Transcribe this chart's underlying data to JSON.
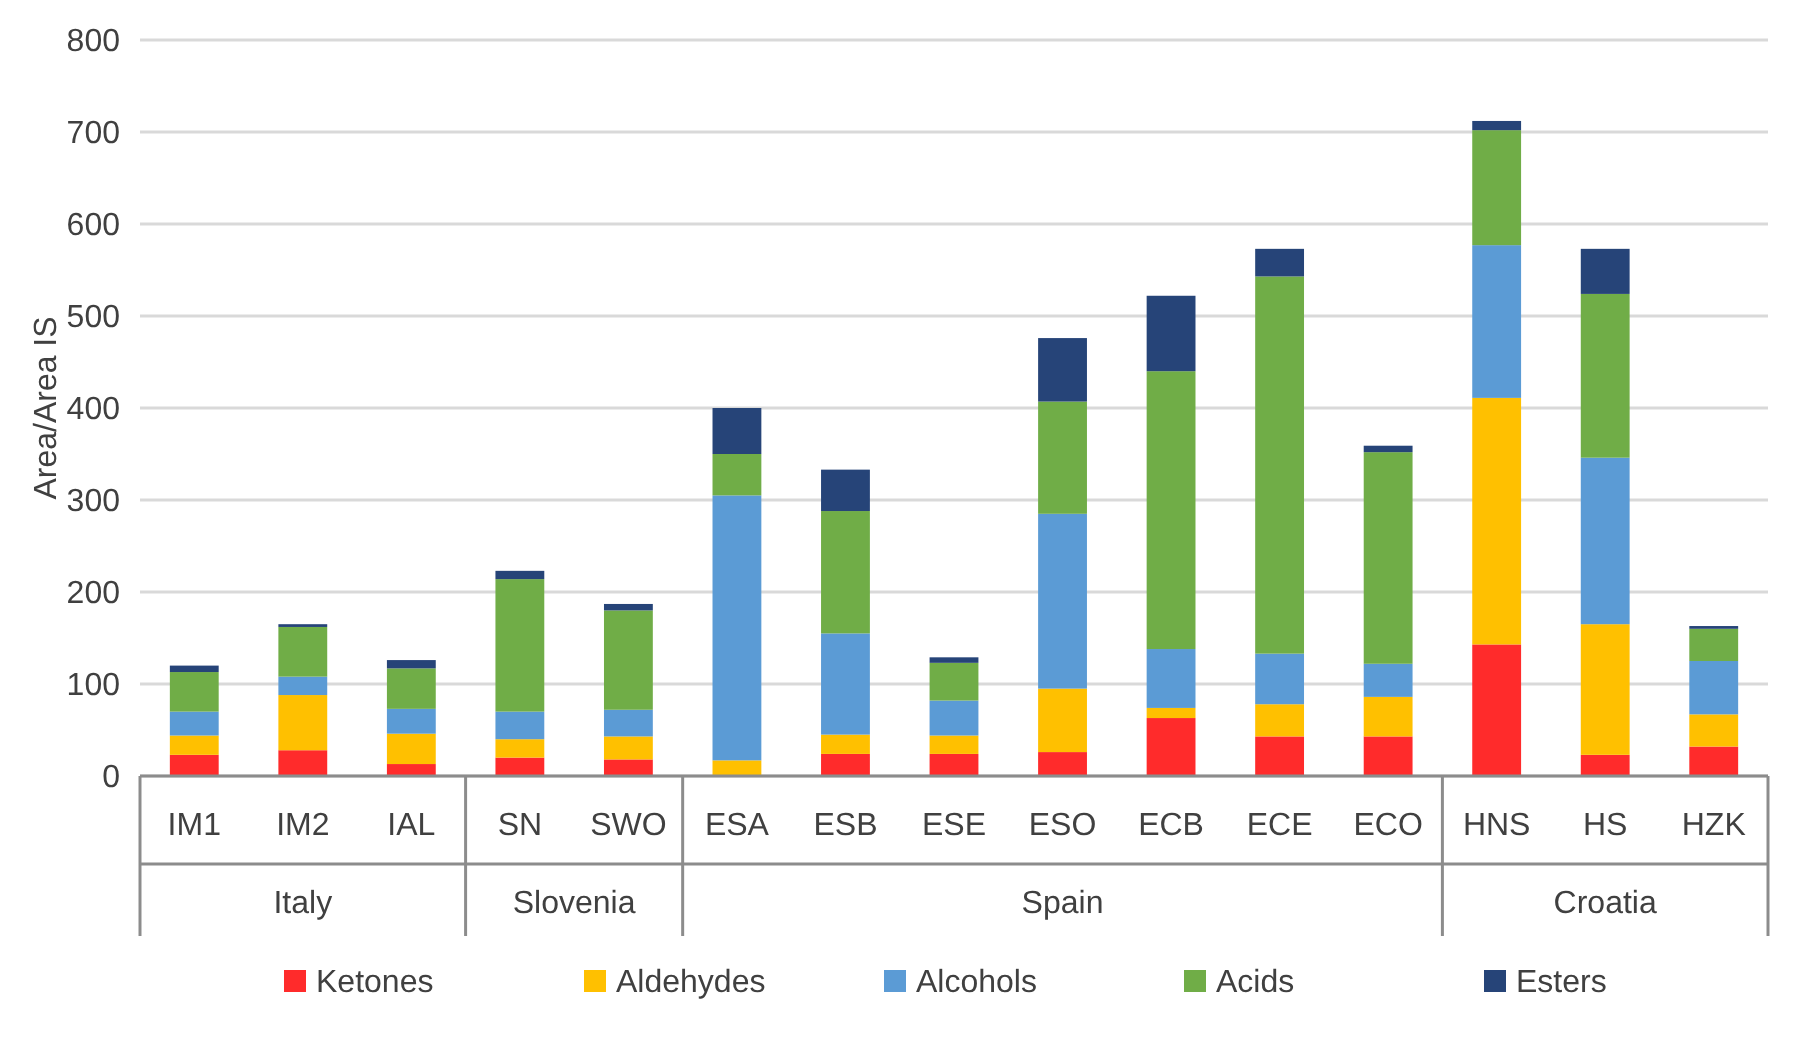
{
  "chart_data": {
    "type": "bar",
    "stacked": true,
    "ylabel": "Area/Area IS",
    "categories": [
      "IM1",
      "IM2",
      "IAL",
      "SN",
      "SWO",
      "ESA",
      "ESB",
      "ESE",
      "ESO",
      "ECB",
      "ECE",
      "ECO",
      "HNS",
      "HS",
      "HZK"
    ],
    "annotations": [
      "Italy",
      "Slovenia",
      "Spain",
      "Croatia"
    ],
    "series": [
      {
        "name": "Ketones",
        "color": "#ff2b2b",
        "values": [
          23,
          28,
          13,
          20,
          18,
          0,
          24,
          24,
          26,
          63,
          43,
          43,
          143,
          23,
          32
        ]
      },
      {
        "name": "Aldehydes",
        "color": "#ffc000",
        "values": [
          21,
          60,
          33,
          20,
          25,
          17,
          21,
          20,
          69,
          11,
          35,
          43,
          268,
          142,
          35
        ]
      },
      {
        "name": "Alcohols",
        "color": "#5b9bd5",
        "values": [
          26,
          20,
          27,
          30,
          29,
          288,
          110,
          38,
          190,
          64,
          55,
          36,
          166,
          181,
          58
        ]
      },
      {
        "name": "Acids",
        "color": "#70ad47",
        "values": [
          43,
          54,
          44,
          144,
          108,
          45,
          133,
          41,
          122,
          302,
          410,
          230,
          125,
          178,
          35
        ]
      },
      {
        "name": "Esters",
        "color": "#264478",
        "values": [
          7,
          3,
          9,
          9,
          7,
          50,
          45,
          6,
          69,
          82,
          30,
          7,
          10,
          49,
          3
        ]
      }
    ],
    "ylim": [
      0,
      800
    ],
    "yticks": [
      0,
      100,
      200,
      300,
      400,
      500,
      600,
      700,
      800
    ],
    "grid": "y",
    "legend": "bottom"
  }
}
